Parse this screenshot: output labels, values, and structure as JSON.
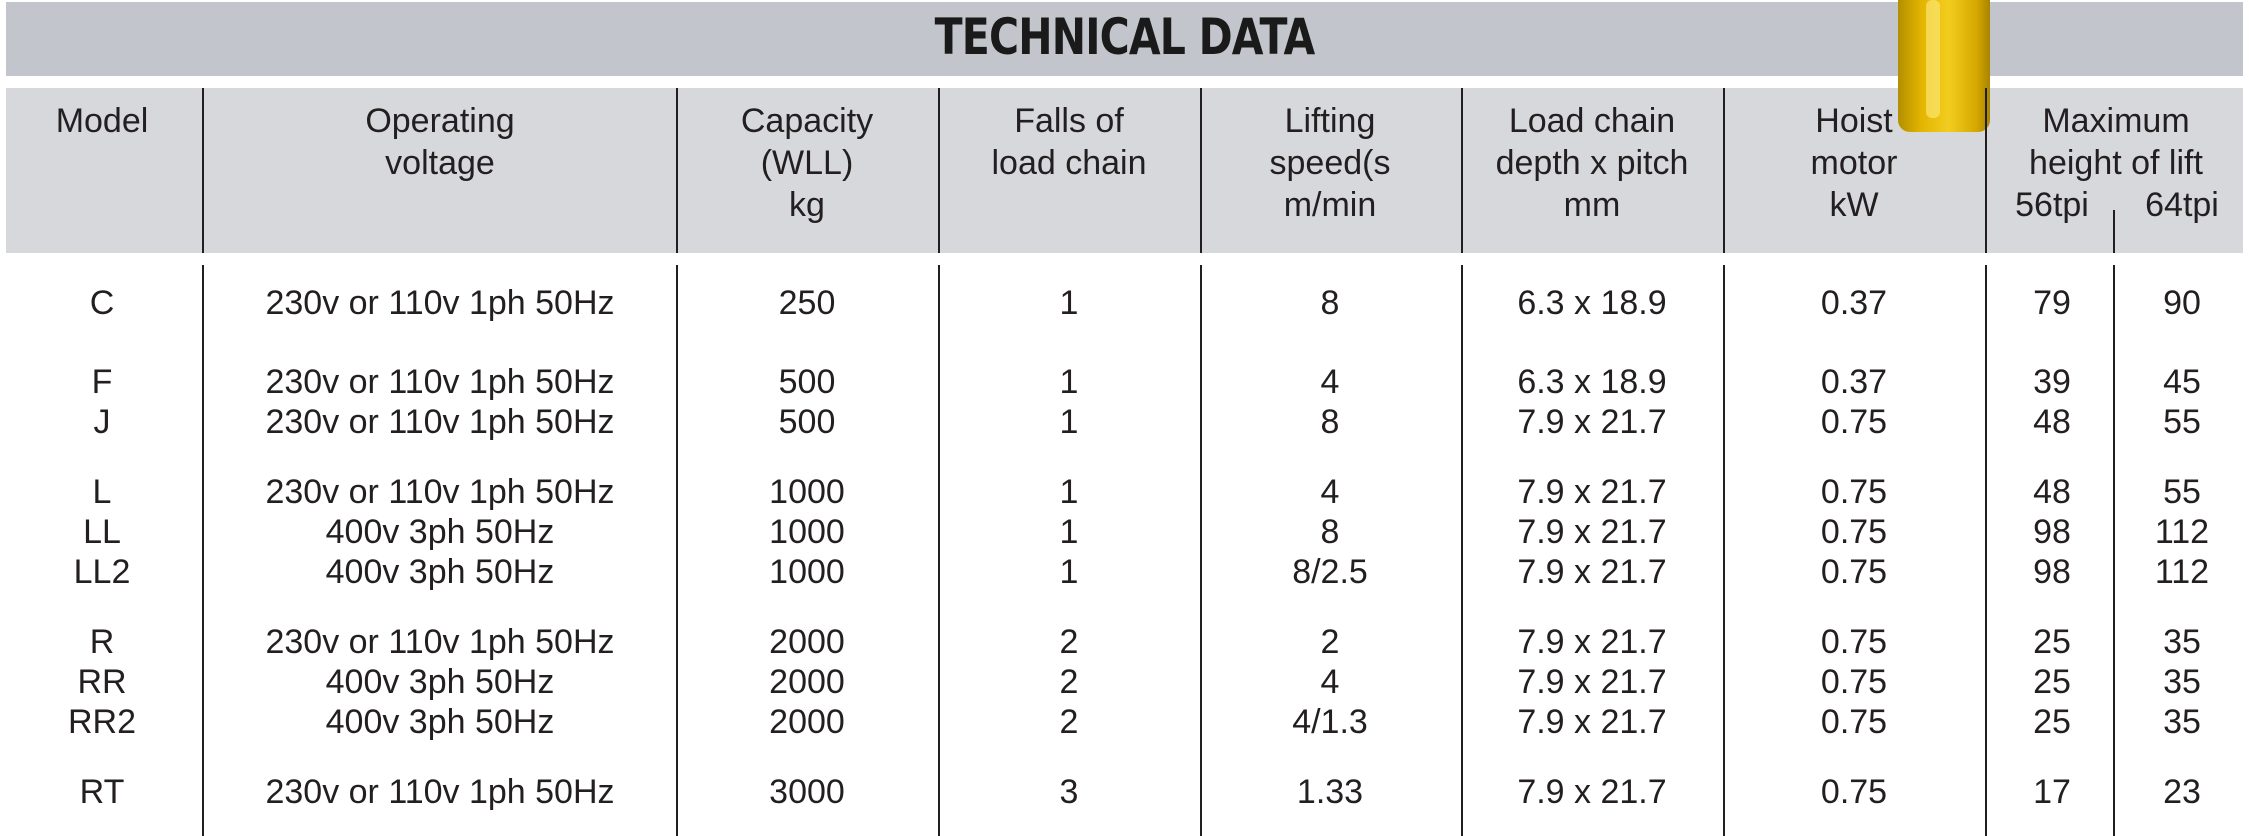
{
  "title": "TECHNICAL DATA",
  "headers": {
    "model": [
      "Model"
    ],
    "voltage": [
      "Operating",
      "voltage"
    ],
    "capacity": [
      "Capacity",
      "(WLL)",
      "kg"
    ],
    "falls": [
      "Falls of",
      "load chain"
    ],
    "speed": [
      "Lifting",
      "speed(s",
      "m/min"
    ],
    "chain": [
      "Load chain",
      "depth x pitch",
      "mm"
    ],
    "motor": [
      "Hoist",
      "motor",
      "kW"
    ],
    "height": [
      "Maximum",
      "height of lift"
    ],
    "height_56": "56tpi",
    "height_64": "64tpi"
  },
  "rows": [
    {
      "model": "C",
      "voltage": "230v or 110v 1ph 50Hz",
      "capacity": "250",
      "falls": "1",
      "speed": "8",
      "chain": "6.3 x 18.9",
      "motor": "0.37",
      "h56": "79",
      "h64": "90"
    },
    {
      "model": "F",
      "voltage": "230v or 110v 1ph 50Hz",
      "capacity": "500",
      "falls": "1",
      "speed": "4",
      "chain": "6.3 x 18.9",
      "motor": "0.37",
      "h56": "39",
      "h64": "45"
    },
    {
      "model": "J",
      "voltage": "230v or 110v 1ph 50Hz",
      "capacity": "500",
      "falls": "1",
      "speed": "8",
      "chain": "7.9 x 21.7",
      "motor": "0.75",
      "h56": "48",
      "h64": "55"
    },
    {
      "model": "L",
      "voltage": "230v or 110v 1ph 50Hz",
      "capacity": "1000",
      "falls": "1",
      "speed": "4",
      "chain": "7.9 x 21.7",
      "motor": "0.75",
      "h56": "48",
      "h64": "55"
    },
    {
      "model": "LL",
      "voltage": "400v 3ph 50Hz",
      "capacity": "1000",
      "falls": "1",
      "speed": "8",
      "chain": "7.9 x 21.7",
      "motor": "0.75",
      "h56": "98",
      "h64": "112"
    },
    {
      "model": "LL2",
      "voltage": "400v 3ph 50Hz",
      "capacity": "1000",
      "falls": "1",
      "speed": "8/2.5",
      "chain": "7.9 x 21.7",
      "motor": "0.75",
      "h56": "98",
      "h64": "112"
    },
    {
      "model": "R",
      "voltage": "230v or 110v 1ph 50Hz",
      "capacity": "2000",
      "falls": "2",
      "speed": "2",
      "chain": "7.9 x 21.7",
      "motor": "0.75",
      "h56": "25",
      "h64": "35"
    },
    {
      "model": "RR",
      "voltage": "400v 3ph 50Hz",
      "capacity": "2000",
      "falls": "2",
      "speed": "4",
      "chain": "7.9 x 21.7",
      "motor": "0.75",
      "h56": "25",
      "h64": "35"
    },
    {
      "model": "RR2",
      "voltage": "400v 3ph 50Hz",
      "capacity": "2000",
      "falls": "2",
      "speed": "4/1.3",
      "chain": "7.9 x 21.7",
      "motor": "0.75",
      "h56": "25",
      "h64": "35"
    },
    {
      "model": "RT",
      "voltage": "230v or 110v 1ph 50Hz",
      "capacity": "3000",
      "falls": "3",
      "speed": "1.33",
      "chain": "7.9 x 21.7",
      "motor": "0.75",
      "h56": "17",
      "h64": "23"
    }
  ]
}
